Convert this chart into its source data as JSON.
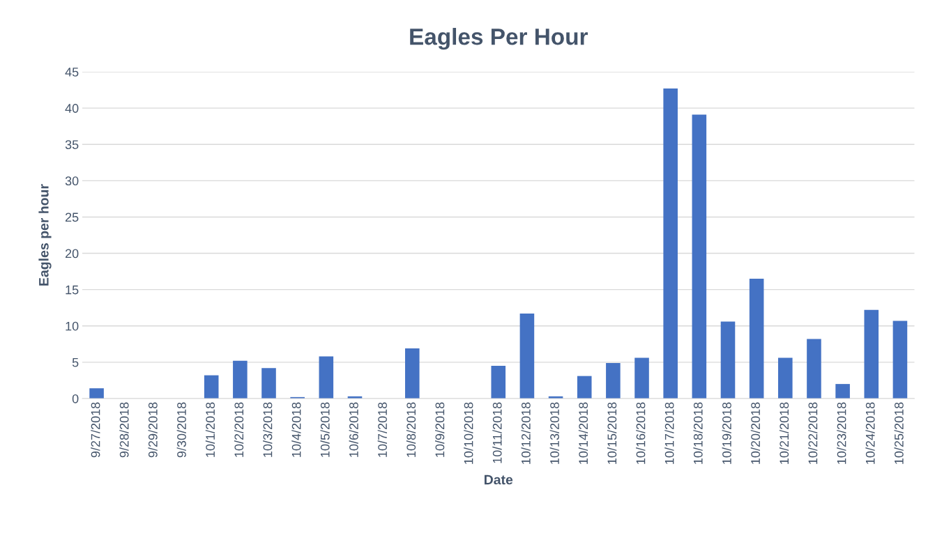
{
  "chart_data": {
    "type": "bar",
    "title": "Eagles Per Hour",
    "xlabel": "Date",
    "ylabel": "Eagles per hour",
    "categories": [
      "9/27/2018",
      "9/28/2018",
      "9/29/2018",
      "9/30/2018",
      "10/1/2018",
      "10/2/2018",
      "10/3/2018",
      "10/4/2018",
      "10/5/2018",
      "10/6/2018",
      "10/7/2018",
      "10/8/2018",
      "10/9/2018",
      "10/10/2018",
      "10/11/2018",
      "10/12/2018",
      "10/13/2018",
      "10/14/2018",
      "10/15/2018",
      "10/16/2018",
      "10/17/2018",
      "10/18/2018",
      "10/19/2018",
      "10/20/2018",
      "10/21/2018",
      "10/22/2018",
      "10/23/2018",
      "10/24/2018",
      "10/25/2018"
    ],
    "values": [
      1.4,
      0,
      0,
      0,
      3.2,
      5.2,
      4.2,
      0.2,
      5.8,
      0.3,
      0,
      6.9,
      0,
      0,
      4.5,
      11.7,
      0.3,
      3.1,
      4.9,
      5.6,
      42.7,
      39.1,
      10.6,
      16.5,
      5.6,
      8.2,
      2.0,
      12.2,
      10.7
    ],
    "color": "#4472c4",
    "ylim": [
      0,
      45
    ],
    "yticks": [
      0,
      5,
      10,
      15,
      20,
      25,
      30,
      35,
      40,
      45
    ],
    "grid": "y",
    "legend": false
  }
}
